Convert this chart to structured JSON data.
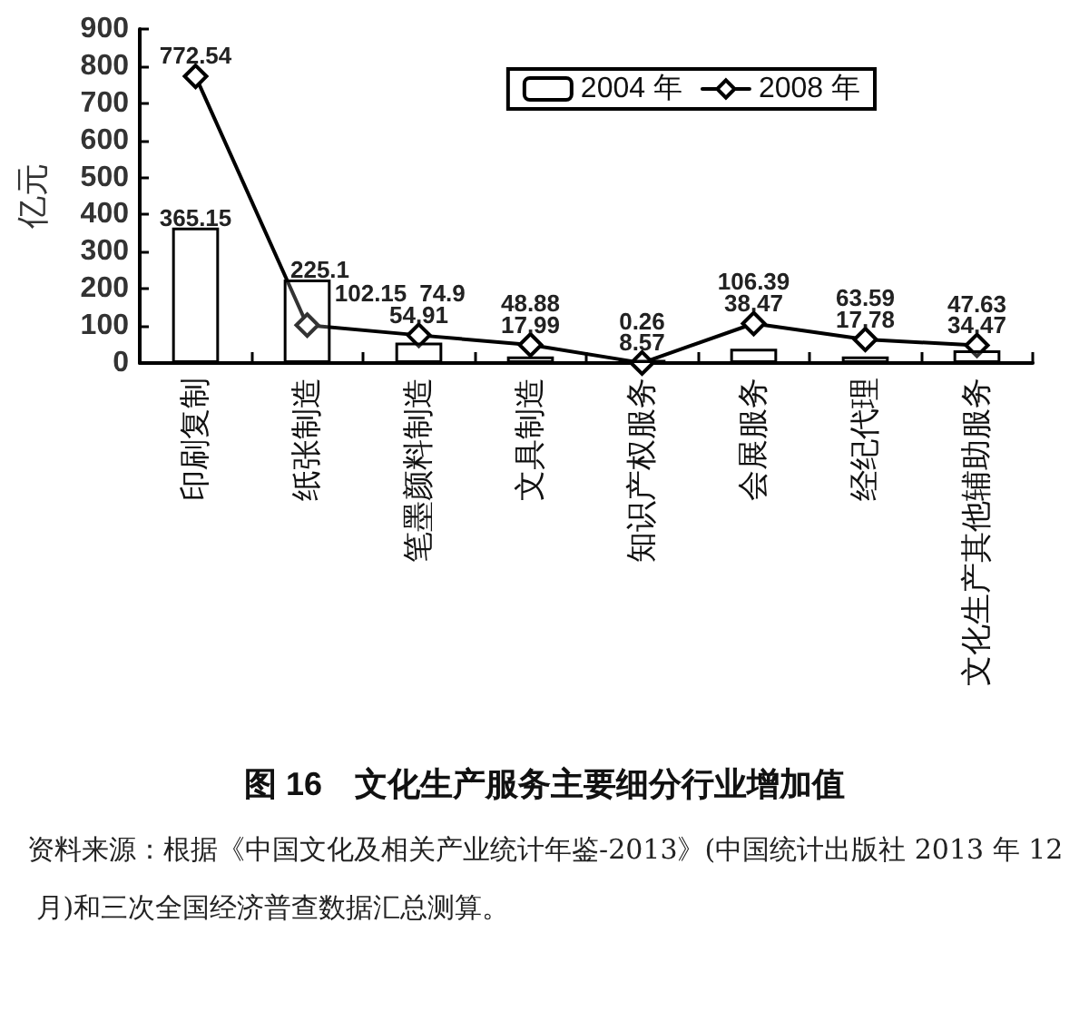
{
  "chart_data": {
    "type": "bar",
    "title": "图 16　文化生产服务主要细分行业增加值",
    "ylabel": "亿元",
    "categories": [
      "印刷复制",
      "纸张制造",
      "笔墨颜料制造",
      "文具制造",
      "知识产权服务",
      "会展服务",
      "经纪代理",
      "文化生产其他辅助服务"
    ],
    "series": [
      {
        "name": "2004 年",
        "color": "#ffffff",
        "values": [
          365.15,
          225.1,
          54.91,
          17.99,
          8.57,
          38.47,
          17.78,
          34.47
        ]
      },
      {
        "name": "2008 年",
        "type": "line",
        "color": "#000000",
        "values": [
          772.54,
          102.15,
          74.9,
          48.88,
          0.26,
          106.39,
          63.59,
          47.63
        ]
      }
    ],
    "ylim": [
      0,
      900
    ],
    "yticks": [
      0,
      100,
      200,
      300,
      400,
      500,
      600,
      700,
      800,
      900
    ],
    "grid": false,
    "legend": "top right",
    "marker": "diamond",
    "line_style": "solid",
    "data_labels": true,
    "annotations": [
      "资料来源：根据《中国文化及相关产业统计年鉴-2013》(中国统计出版社 2013 年 12 月)和三次全国经济普查数据汇总测算。"
    ]
  }
}
